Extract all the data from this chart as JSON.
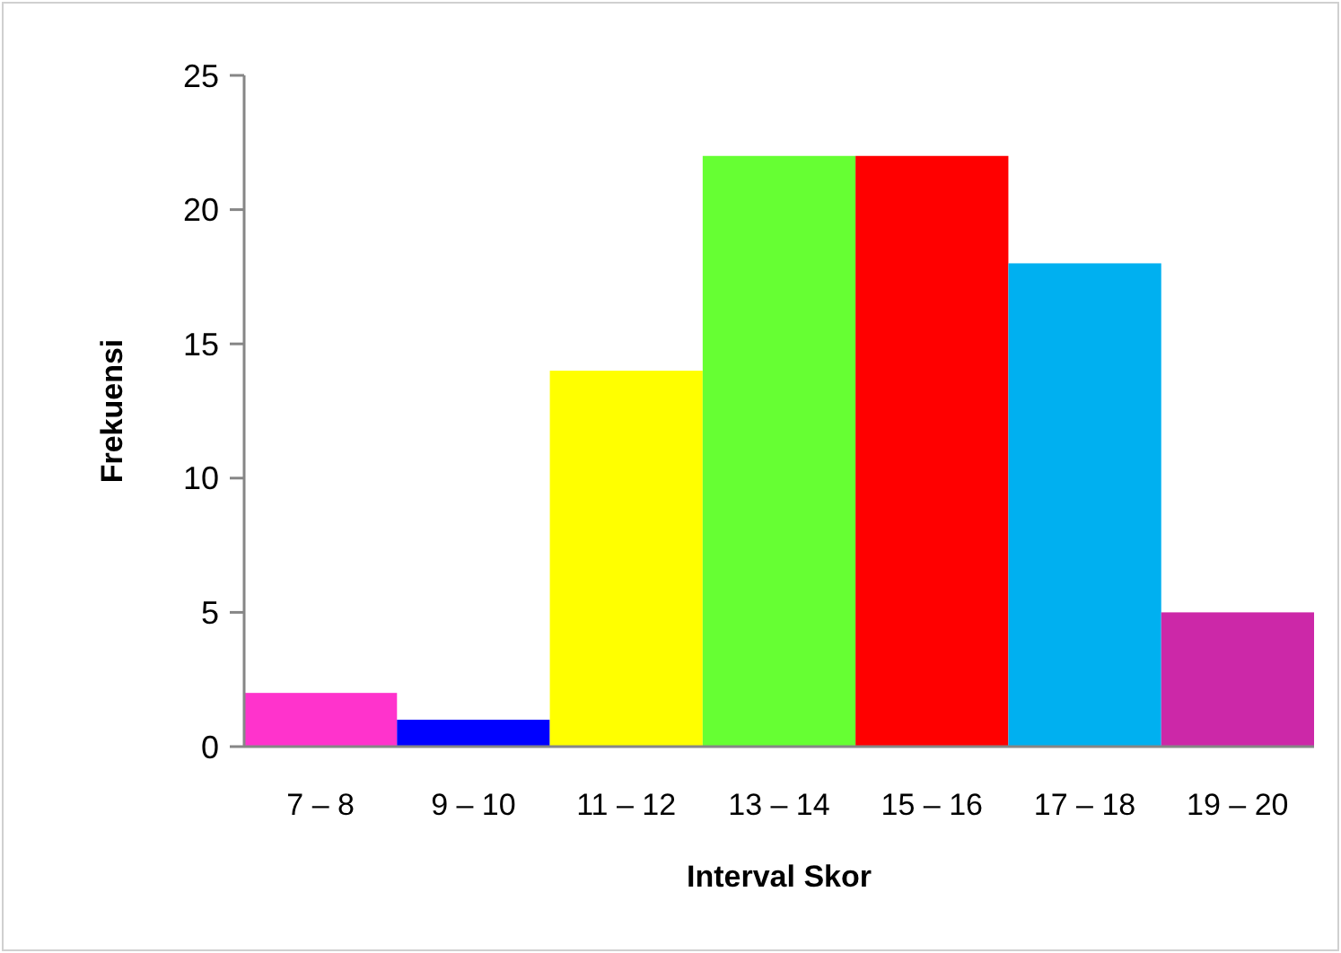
{
  "chart_data": {
    "type": "bar",
    "xlabel": "Interval Skor",
    "ylabel": "Frekuensi",
    "categories": [
      "7 – 8",
      "9 – 10",
      "11 – 12",
      "13 – 14",
      "15 – 16",
      "17 – 18",
      "19 – 20"
    ],
    "values": [
      2,
      1,
      14,
      22,
      22,
      18,
      5
    ],
    "colors": [
      "#ff33cc",
      "#0000ff",
      "#ffff00",
      "#66ff33",
      "#ff0000",
      "#00b0f0",
      "#cc28a8"
    ],
    "ylim": [
      0,
      25
    ],
    "yticks": [
      0,
      5,
      10,
      15,
      20,
      25
    ],
    "grid": false
  }
}
